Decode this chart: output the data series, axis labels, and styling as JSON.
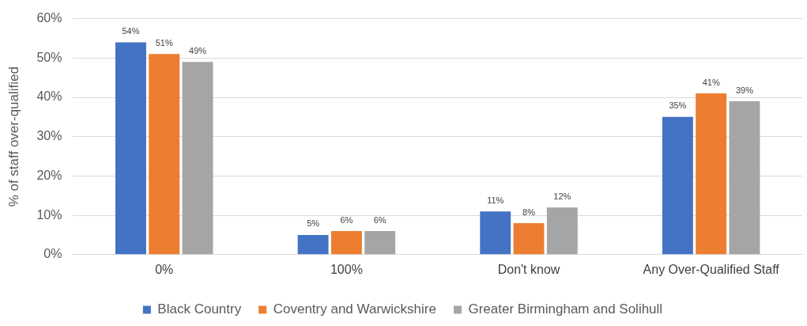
{
  "chart_data": {
    "type": "bar",
    "ylabel": "% of staff over-qualified",
    "categories": [
      "0%",
      "100%",
      "Don't know",
      "Any Over-Qualified Staff"
    ],
    "series": [
      {
        "name": "Black Country",
        "color": "#4472c4",
        "values": [
          54,
          5,
          11,
          35
        ],
        "value_labels": [
          "54%",
          "5%",
          "11%",
          "35%"
        ]
      },
      {
        "name": "Coventry and Warwickshire",
        "color": "#ed7d31",
        "values": [
          51,
          6,
          8,
          41
        ],
        "value_labels": [
          "51%",
          "6%",
          "8%",
          "41%"
        ]
      },
      {
        "name": "Greater Birmingham and Solihull",
        "color": "#a5a5a5",
        "values": [
          49,
          6,
          12,
          39
        ],
        "value_labels": [
          "49%",
          "6%",
          "12%",
          "39%"
        ]
      }
    ],
    "ylim": [
      0,
      60
    ],
    "yticks": [
      {
        "value": 0,
        "label": "0%"
      },
      {
        "value": 10,
        "label": "10%"
      },
      {
        "value": 20,
        "label": "20%"
      },
      {
        "value": 30,
        "label": "30%"
      },
      {
        "value": 40,
        "label": "40%"
      },
      {
        "value": 50,
        "label": "50%"
      },
      {
        "value": 60,
        "label": "60%"
      }
    ],
    "grid": "y",
    "legend": "bottom"
  }
}
